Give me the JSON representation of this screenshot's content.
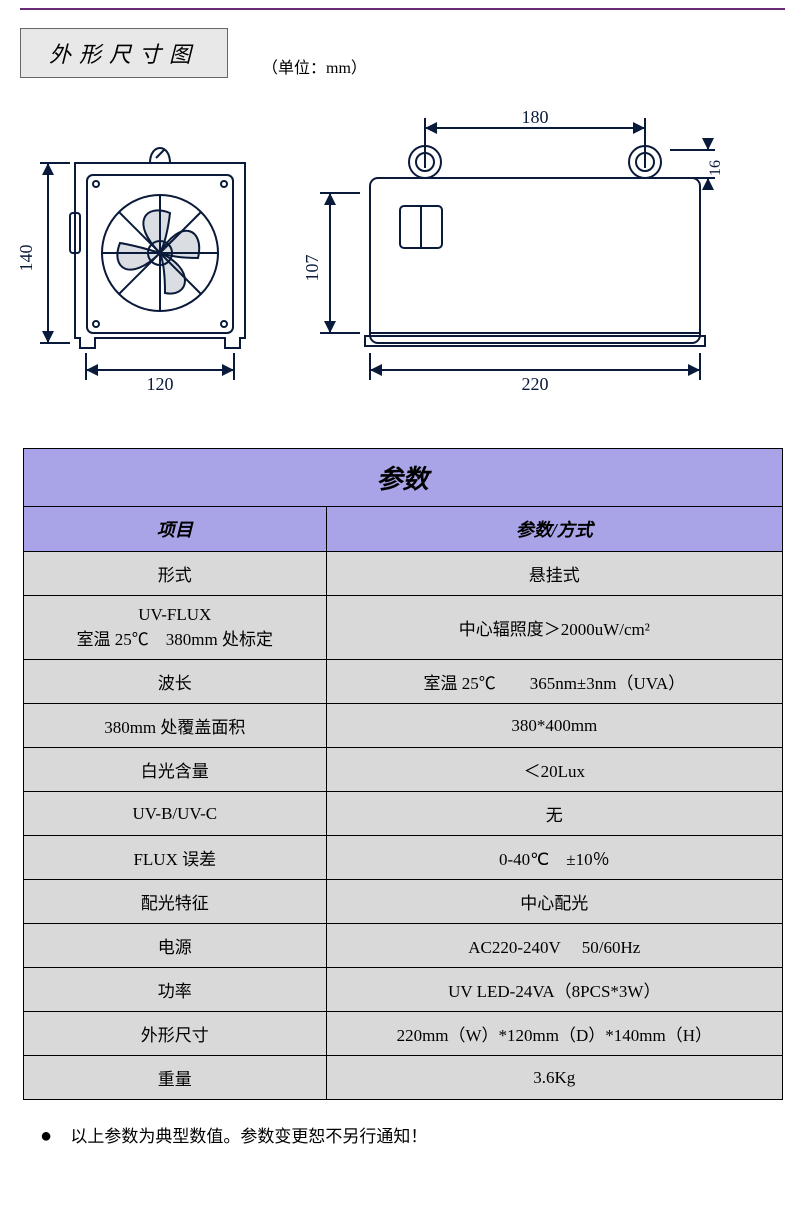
{
  "section_heading": "外形尺寸图",
  "unit_label": "（单位：mm）",
  "drawing": {
    "front": {
      "width_label": "120",
      "height_label": "140"
    },
    "side": {
      "width_label": "220",
      "top_span_label": "180",
      "inner_height_label": "107",
      "ring_height_label": "16"
    },
    "stroke": "#0a1a3a",
    "stroke_width": 2
  },
  "table": {
    "title": "参数",
    "header_left": "项目",
    "header_right": "参数/方式",
    "colors": {
      "header_bg": "#a9a4e8",
      "body_bg": "#d9d9d9",
      "border": "#000000"
    },
    "rows": [
      {
        "k": "形式",
        "v": "悬挂式"
      },
      {
        "k": "UV-FLUX\n室温 25℃　380mm 处标定",
        "v": "中心辐照度＞2000uW/cm²"
      },
      {
        "k": "波长",
        "v": "室温 25℃　　365nm±3nm（UVA）"
      },
      {
        "k": "380mm 处覆盖面积",
        "v": "380*400mm"
      },
      {
        "k": "白光含量",
        "v": "＜20Lux"
      },
      {
        "k": "UV-B/UV-C",
        "v": "无"
      },
      {
        "k": "FLUX 误差",
        "v": "0-40℃　±10％"
      },
      {
        "k": "配光特征",
        "v": "中心配光"
      },
      {
        "k": "电源",
        "v": "AC220-240V　 50/60Hz"
      },
      {
        "k": "功率",
        "v": "UV LED-24VA（8PCS*3W）"
      },
      {
        "k": "外形尺寸",
        "v": "220mm（W）*120mm（D）*140mm（H）"
      },
      {
        "k": "重量",
        "v": "3.6Kg"
      }
    ]
  },
  "footnote": "以上参数为典型数值。参数变更恕不另行通知！"
}
